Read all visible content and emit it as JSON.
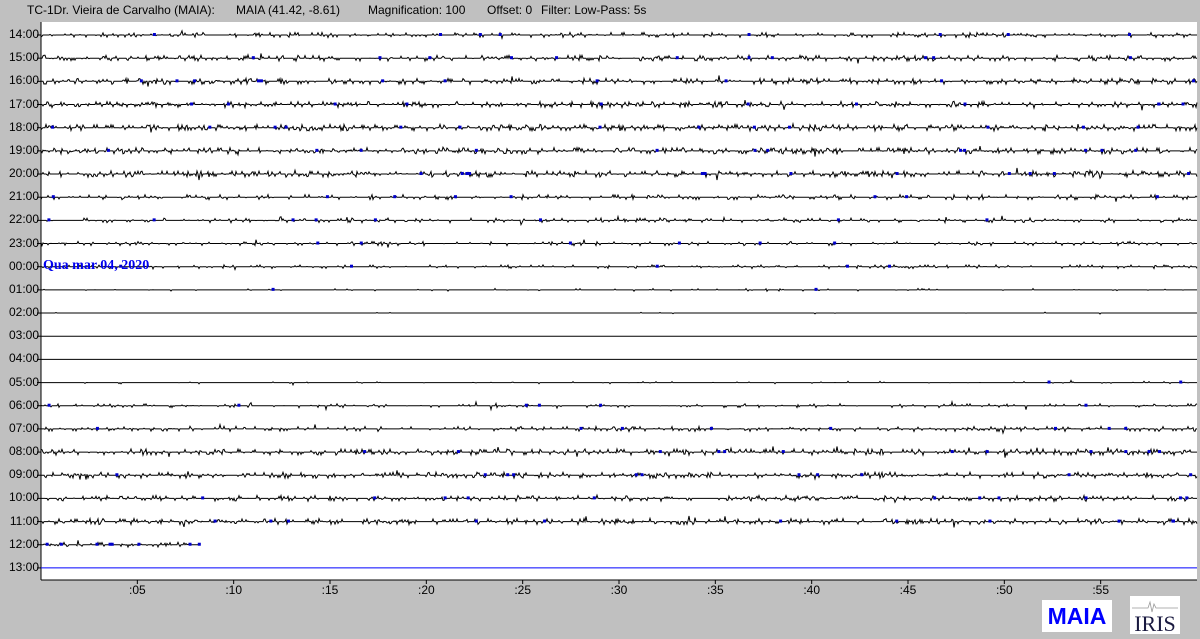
{
  "header": {
    "station": "TC-1Dr. Vieira de Carvalho (MAIA):",
    "location": "MAIA (41.42, -8.61)",
    "magnification": "Magnification: 100",
    "offset": "Offset: 0",
    "filter": "Filter: Low-Pass: 5s"
  },
  "date_label": "Qua mar 04, 2020",
  "logos": {
    "maia": "MAIA",
    "iris": "IRIS"
  },
  "colors": {
    "trace": "#000000",
    "trace_alt": "#0000cc",
    "date": "#0000ee",
    "current_line": "#0000ff",
    "background": "#c0c0c0"
  },
  "chart_data": {
    "type": "line",
    "title": "",
    "xlabel": "",
    "ylabel": "",
    "xlim": [
      0,
      60
    ],
    "x_ticks": [
      ":05",
      ":10",
      ":15",
      ":20",
      ":25",
      ":30",
      ":35",
      ":40",
      ":45",
      ":50",
      ":55"
    ],
    "rows": [
      {
        "label": "14:00",
        "activity": 0.6
      },
      {
        "label": "15:00",
        "activity": 0.75
      },
      {
        "label": "16:00",
        "activity": 0.8
      },
      {
        "label": "17:00",
        "activity": 0.8
      },
      {
        "label": "18:00",
        "activity": 0.9
      },
      {
        "label": "19:00",
        "activity": 0.85
      },
      {
        "label": "20:00",
        "activity": 0.85
      },
      {
        "label": "21:00",
        "activity": 0.6
      },
      {
        "label": "22:00",
        "activity": 0.55
      },
      {
        "label": "23:00",
        "activity": 0.45
      },
      {
        "label": "00:00",
        "activity": 0.35
      },
      {
        "label": "01:00",
        "activity": 0.15
      },
      {
        "label": "02:00",
        "activity": 0.02
      },
      {
        "label": "03:00",
        "activity": 0
      },
      {
        "label": "04:00",
        "activity": 0
      },
      {
        "label": "05:00",
        "activity": 0.12
      },
      {
        "label": "06:00",
        "activity": 0.4
      },
      {
        "label": "07:00",
        "activity": 0.6
      },
      {
        "label": "08:00",
        "activity": 0.85
      },
      {
        "label": "09:00",
        "activity": 0.8
      },
      {
        "label": "10:00",
        "activity": 0.75
      },
      {
        "label": "11:00",
        "activity": 0.8
      },
      {
        "label": "12:00",
        "activity": 0.6,
        "end_minute": 8.3
      },
      {
        "label": "13:00",
        "activity": 0,
        "current": true
      }
    ]
  }
}
